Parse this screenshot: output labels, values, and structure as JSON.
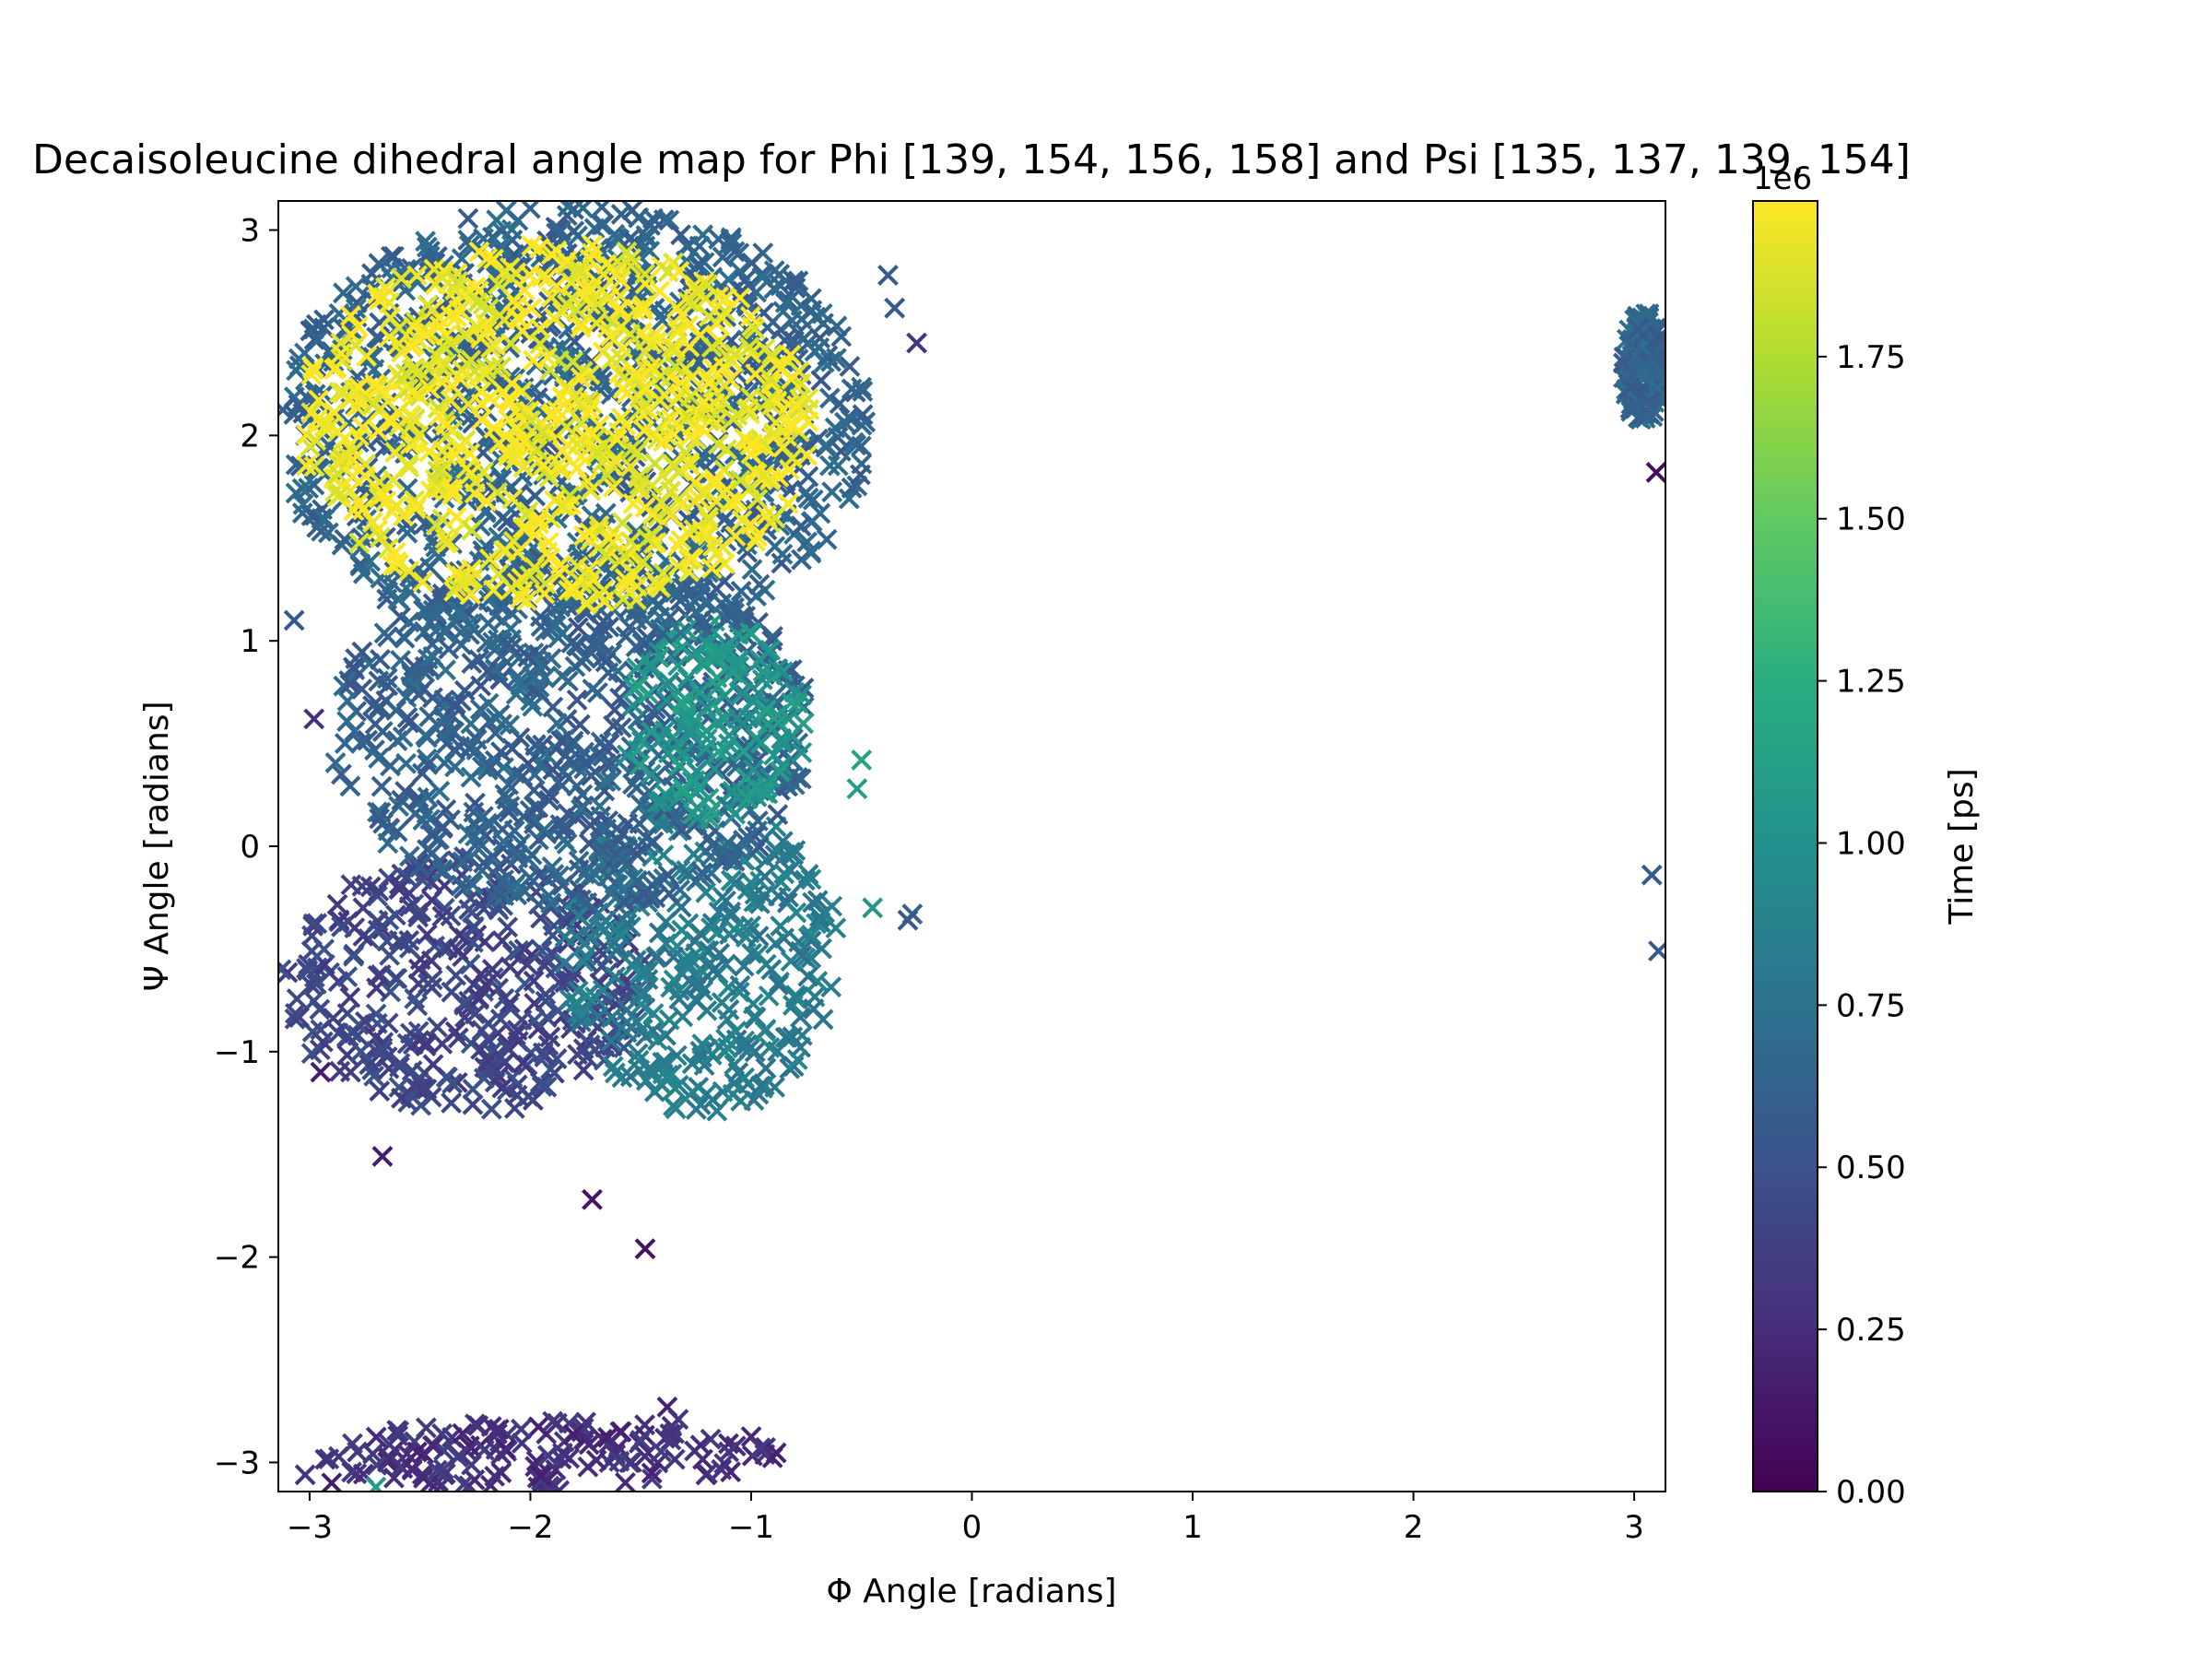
{
  "chart_data": {
    "type": "scatter",
    "title": "Decaisoleucine dihedral angle map for Phi [139, 154, 156, 158] and Psi [135, 137, 139, 154]",
    "xlabel": "Φ Angle [radians]",
    "ylabel": "Ψ Angle [radians]",
    "xlim": [
      -3.14159,
      3.14159
    ],
    "ylim": [
      -3.14159,
      3.14159
    ],
    "x_ticks": [
      -3,
      -2,
      -1,
      0,
      1,
      2,
      3
    ],
    "x_tick_labels": [
      "−3",
      "−2",
      "−1",
      "0",
      "1",
      "2",
      "3"
    ],
    "y_ticks": [
      -3,
      -2,
      -1,
      0,
      1,
      2,
      3
    ],
    "y_tick_labels": [
      "−3",
      "−2",
      "−1",
      "0",
      "1",
      "2",
      "3"
    ],
    "marker": "x",
    "grid": false,
    "colormap": "viridis",
    "colorbar": {
      "label": "Time [ps]",
      "range": [
        0,
        1990000
      ],
      "ticks": [
        0,
        250000,
        500000,
        750000,
        1000000,
        1250000,
        1500000,
        1750000
      ],
      "tick_labels": [
        "0.00",
        "0.25",
        "0.50",
        "0.75",
        "1.00",
        "1.25",
        "1.50",
        "1.75"
      ],
      "offset_text": "1e6"
    },
    "clusters": [
      {
        "region": "lower-left basin",
        "phi": [
          -3.14,
          -1.45
        ],
        "psi": [
          -1.3,
          -0.05
        ],
        "time": 420000
      },
      {
        "region": "center-left basin",
        "phi": [
          -1.85,
          -0.6
        ],
        "psi": [
          -1.3,
          0.25
        ],
        "time": 830000
      },
      {
        "region": "middle bridge",
        "phi": [
          -2.9,
          -0.7
        ],
        "psi": [
          -0.3,
          1.4
        ],
        "time": 620000
      },
      {
        "region": "upper-right teal",
        "phi": [
          -1.6,
          -0.75
        ],
        "psi": [
          0.1,
          1.1
        ],
        "time": 1050000
      },
      {
        "region": "upper rim",
        "phi": [
          -3.14,
          -0.45
        ],
        "psi": [
          0.95,
          3.14
        ],
        "time": 640000
      },
      {
        "region": "upper beta basin",
        "phi": [
          -3.05,
          -0.72
        ],
        "psi": [
          1.15,
          2.95
        ],
        "time": 1950000
      },
      {
        "region": "bottom strip",
        "phi": [
          -3.0,
          -0.8
        ],
        "psi": [
          -3.14,
          -2.8
        ],
        "time": 280000
      },
      {
        "region": "right edge",
        "phi": [
          2.95,
          3.14
        ],
        "psi": [
          2.05,
          2.6
        ],
        "time": 640000
      }
    ],
    "points": [
      {
        "x": -1.72,
        "y": -1.72,
        "t": 100000
      },
      {
        "x": -1.48,
        "y": -1.96,
        "t": 100000
      },
      {
        "x": -0.27,
        "y": -0.33,
        "t": 620000
      },
      {
        "x": -0.29,
        "y": -0.36,
        "t": 560000
      },
      {
        "x": -0.45,
        "y": -0.3,
        "t": 1050000
      },
      {
        "x": -0.25,
        "y": 2.45,
        "t": 300000
      },
      {
        "x": -0.38,
        "y": 2.78,
        "t": 560000
      },
      {
        "x": -0.35,
        "y": 2.62,
        "t": 560000
      },
      {
        "x": -0.5,
        "y": 0.42,
        "t": 1150000
      },
      {
        "x": -0.52,
        "y": 0.28,
        "t": 1100000
      },
      {
        "x": -1.38,
        "y": -2.73,
        "t": 200000
      },
      {
        "x": -1.33,
        "y": -2.79,
        "t": 300000
      },
      {
        "x": -2.15,
        "y": -2.86,
        "t": 250000
      },
      {
        "x": -2.6,
        "y": -2.87,
        "t": 300000
      },
      {
        "x": -3.02,
        "y": -3.06,
        "t": 300000
      },
      {
        "x": -2.9,
        "y": -3.1,
        "t": 150000
      },
      {
        "x": -2.7,
        "y": -3.12,
        "t": 1100000
      },
      {
        "x": -3.07,
        "y": 1.1,
        "t": 560000
      },
      {
        "x": -2.98,
        "y": 0.62,
        "t": 250000
      },
      {
        "x": -2.67,
        "y": -1.51,
        "t": 150000
      },
      {
        "x": -2.95,
        "y": -1.1,
        "t": 150000
      },
      {
        "x": 3.02,
        "y": 2.52,
        "t": 560000
      },
      {
        "x": 2.98,
        "y": 2.23,
        "t": 560000
      },
      {
        "x": 3.1,
        "y": 1.82,
        "t": 80000
      },
      {
        "x": 3.08,
        "y": -0.14,
        "t": 560000
      },
      {
        "x": 3.11,
        "y": -0.51,
        "t": 560000
      }
    ]
  }
}
